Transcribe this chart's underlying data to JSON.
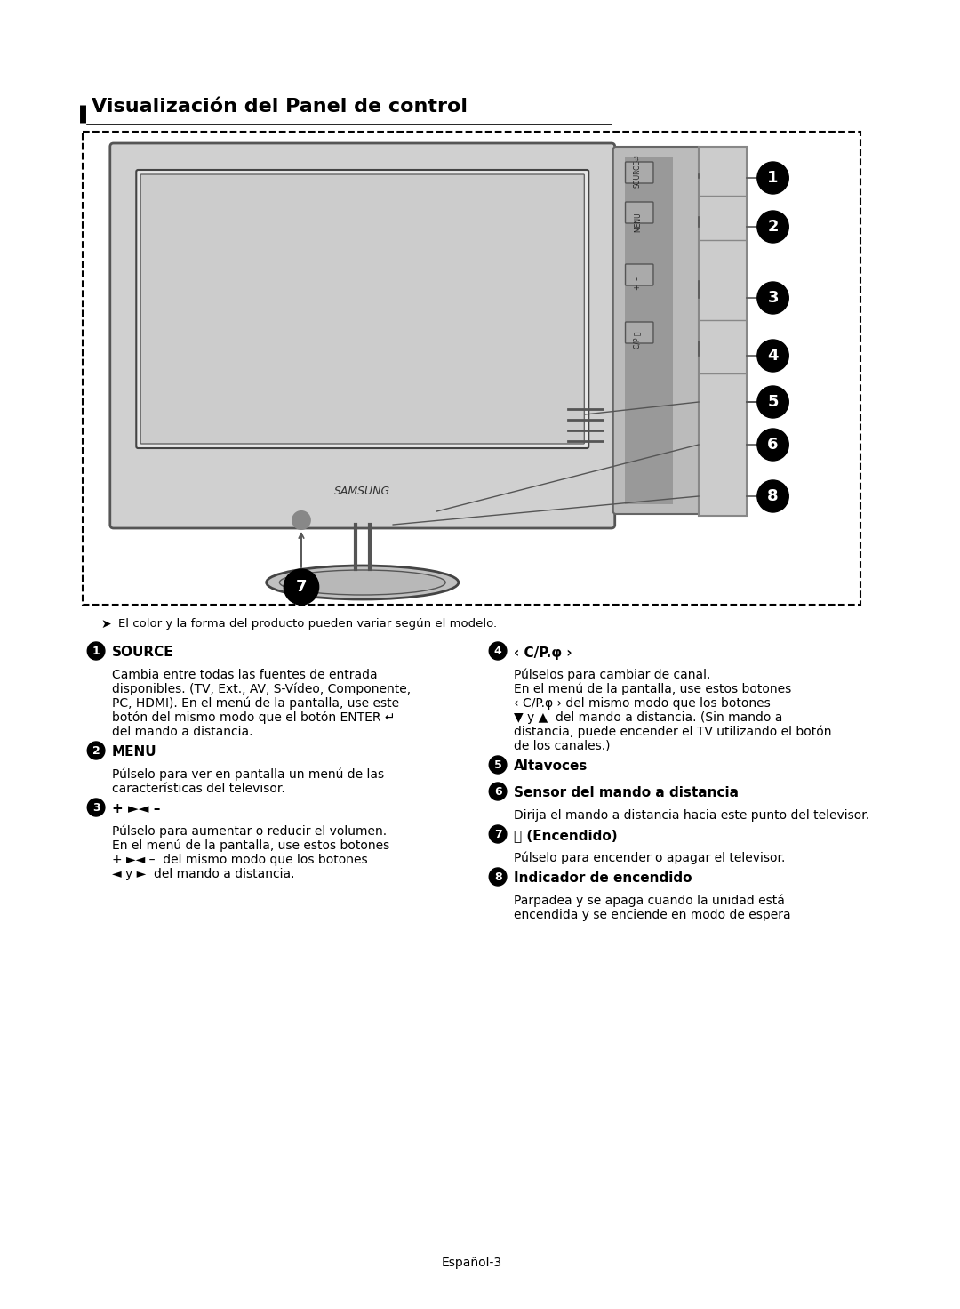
{
  "title": "Visualización del Panel de control",
  "bg_color": "#ffffff",
  "page_number": "Español-3",
  "note": "El color y la forma del producto pueden variar según el modelo.",
  "items": [
    {
      "num": "1",
      "heading": "SOURCE ↵",
      "heading_bold": "SOURCE",
      "heading_suffix": " ↵",
      "body": "Cambia entre todas las fuentes de entrada\ndisponibles. (TV, Ext., AV, S-Vídeo, Componente,\nPC, HDMI). En el menú de la pantalla, use este\nbotón del mismo modo que el botón ENTER ↵\ndel mando a distancia."
    },
    {
      "num": "2",
      "heading": "MENU",
      "heading_bold": "MENU",
      "heading_suffix": "",
      "body": "Púlselo para ver en pantalla un menú de las\ncaracterísticas del televisor."
    },
    {
      "num": "3",
      "heading": "+ ►◄ –",
      "heading_bold": "+ ►◄ –",
      "heading_suffix": "",
      "body": "Púlselo para aumentar o reducir el volumen.\nEn el menú de la pantalla, use estos botones\n+ ►◄ –  del mismo modo que los botones\n◄ y ►  del mando a distancia."
    },
    {
      "num": "4",
      "heading": "‹ C/P. φ ›",
      "heading_bold": "‹ C/P.φ ›",
      "heading_suffix": "",
      "body": "Púlselos para cambiar de canal.\nEn el menú de la pantalla, use estos botones\n‹ C/P.φ › del mismo modo que los botones\n▼ y ▲  del mando a distancia. (Sin mando a\ndistancia, puede encender el TV utilizando el botón\nde los canales.)"
    },
    {
      "num": "5",
      "heading": "Altavoces",
      "heading_bold": "Altavoces",
      "heading_suffix": "",
      "body": ""
    },
    {
      "num": "6",
      "heading": "Sensor del mando a distancia",
      "heading_bold": "Sensor del mando a distancia",
      "heading_suffix": "",
      "body": "Dirija el mando a distancia hacia este punto del televisor."
    },
    {
      "num": "7",
      "heading": "⏻ (Encendido)",
      "heading_bold": "⏻ (Encendido)",
      "heading_suffix": "",
      "body": "Púlselo para encender o apagar el televisor."
    },
    {
      "num": "8",
      "heading": "Indicador de encendido",
      "heading_bold": "Indicador de encendido",
      "heading_suffix": "",
      "body": "Parpadea y se apaga cuando la unidad está\nencendida y se enciende en modo de espera"
    }
  ]
}
